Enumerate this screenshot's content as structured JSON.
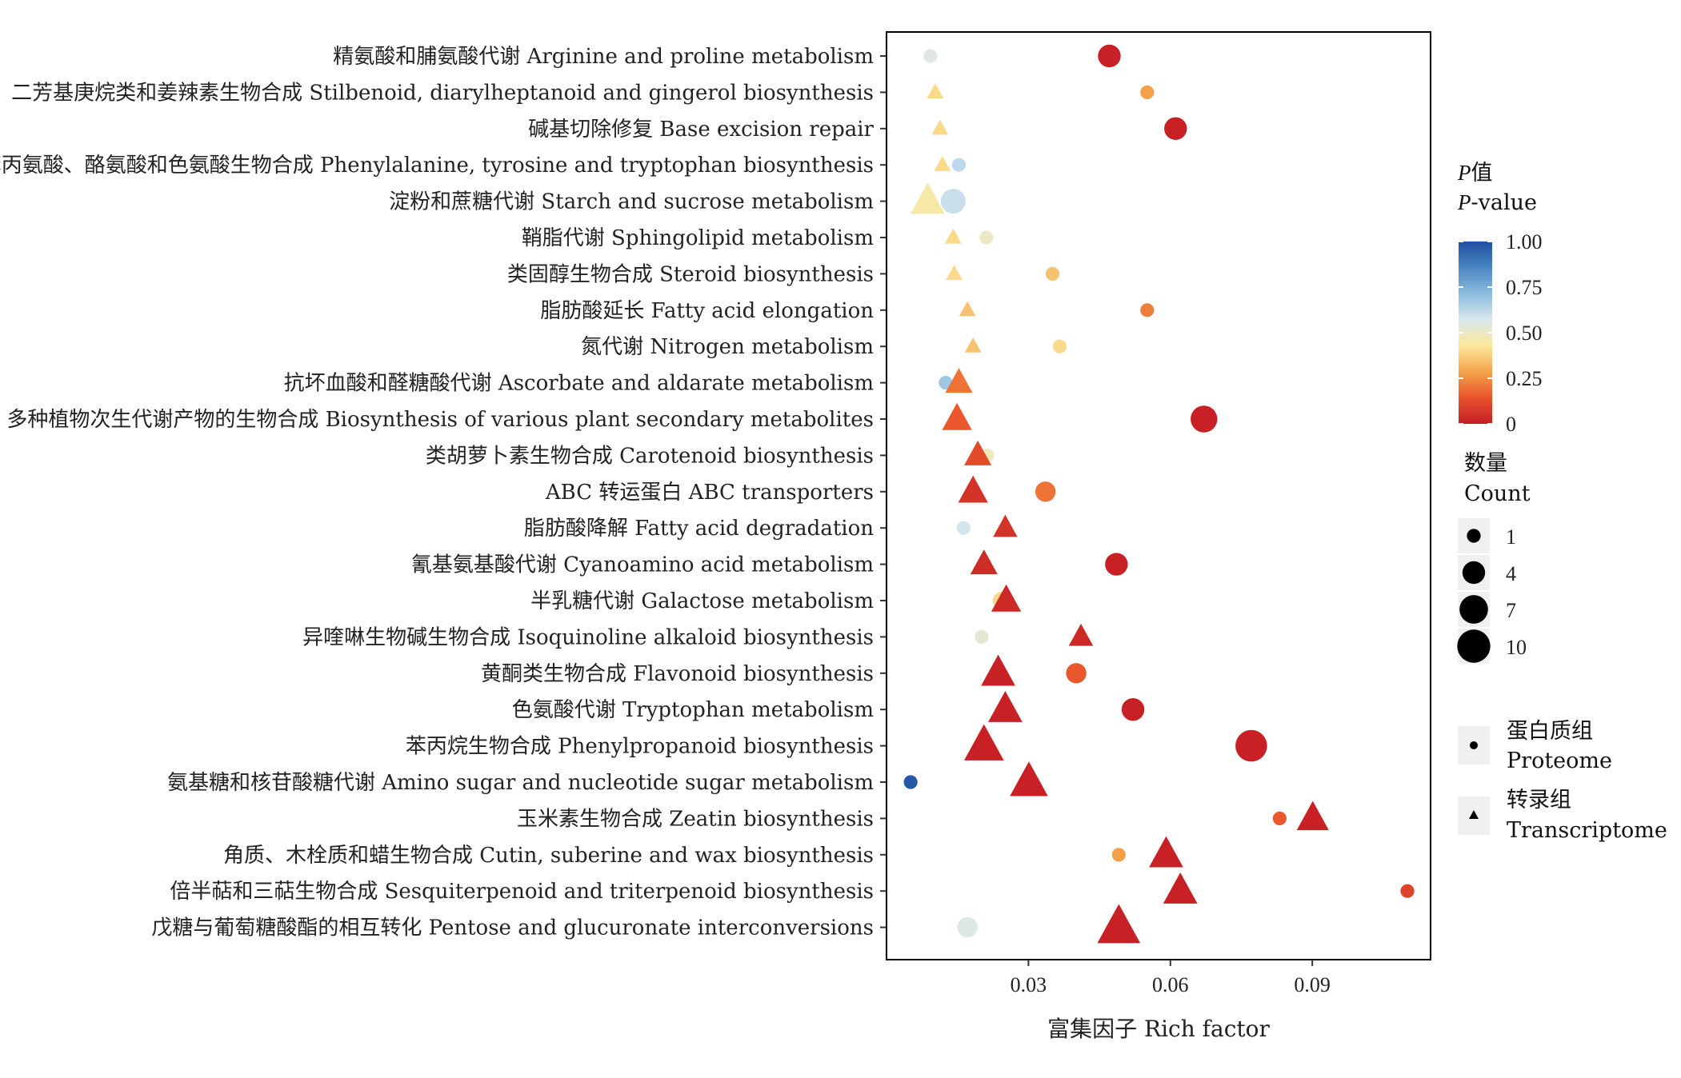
{
  "chart_data": {
    "type": "scatter",
    "xlabel": "富集因子 Rich factor",
    "xlim": [
      0.0,
      0.115
    ],
    "xticks": [
      0.03,
      0.06,
      0.09
    ],
    "xtick_labels": [
      "0.03",
      "0.06",
      "0.09"
    ],
    "categories": [
      "精氨酸和脯氨酸代谢 Arginine and proline metabolism",
      "芪类、二芳基庚烷类和姜辣素生物合成 Stilbenoid, diarylheptanoid and gingerol biosynthesis",
      "碱基切除修复 Base excision repair",
      "苯丙氨酸、酪氨酸和色氨酸生物合成 Phenylalanine, tyrosine and tryptophan biosynthesis",
      "淀粉和蔗糖代谢 Starch and sucrose metabolism",
      "鞘脂代谢 Sphingolipid metabolism",
      "类固醇生物合成 Steroid biosynthesis",
      "脂肪酸延长 Fatty acid elongation",
      "氮代谢 Nitrogen metabolism",
      "抗坏血酸和醛糖酸代谢 Ascorbate and aldarate metabolism",
      "多种植物次生代谢产物的生物合成 Biosynthesis of various plant secondary metabolites",
      "类胡萝卜素生物合成 Carotenoid biosynthesis",
      "ABC 转运蛋白 ABC transporters",
      "脂肪酸降解 Fatty acid degradation",
      "氰基氨基酸代谢 Cyanoamino acid metabolism",
      "半乳糖代谢 Galactose metabolism",
      "异喹啉生物碱生物合成 Isoquinoline alkaloid biosynthesis",
      "黄酮类生物合成 Flavonoid biosynthesis",
      "色氨酸代谢 Tryptophan metabolism",
      "苯丙烷生物合成 Phenylpropanoid biosynthesis",
      "氨基糖和核苷酸糖代谢 Amino sugar and nucleotide sugar metabolism",
      "玉米素生物合成 Zeatin biosynthesis",
      "角质、木栓质和蜡生物合成 Cutin, suberine and wax biosynthesis",
      "倍半萜和三萜生物合成 Sesquiterpenoid and triterpenoid biosynthesis",
      "戊糖与葡萄糖酸酯的相互转化 Pentose and glucuronate interconversions"
    ],
    "series": [
      {
        "name": "蛋白质组 Proteome",
        "marker": "circle",
        "points": [
          {
            "category": 0,
            "x": 0.0093,
            "p": 0.55,
            "count": 1
          },
          {
            "category": 0,
            "x": 0.0471,
            "p": 0.01,
            "count": 4
          },
          {
            "category": 1,
            "x": 0.0551,
            "p": 0.28,
            "count": 1
          },
          {
            "category": 2,
            "x": 0.0611,
            "p": 0.01,
            "count": 4
          },
          {
            "category": 3,
            "x": 0.0153,
            "p": 0.62,
            "count": 1
          },
          {
            "category": 4,
            "x": 0.0141,
            "p": 0.6,
            "count": 5
          },
          {
            "category": 5,
            "x": 0.0211,
            "p": 0.5,
            "count": 1
          },
          {
            "category": 6,
            "x": 0.0351,
            "p": 0.35,
            "count": 1
          },
          {
            "category": 7,
            "x": 0.0551,
            "p": 0.22,
            "count": 1
          },
          {
            "category": 8,
            "x": 0.0366,
            "p": 0.4,
            "count": 1
          },
          {
            "category": 9,
            "x": 0.0125,
            "p": 0.68,
            "count": 1
          },
          {
            "category": 10,
            "x": 0.0671,
            "p": 0.01,
            "count": 6
          },
          {
            "category": 11,
            "x": 0.0213,
            "p": 0.48,
            "count": 1
          },
          {
            "category": 12,
            "x": 0.0336,
            "p": 0.2,
            "count": 3
          },
          {
            "category": 13,
            "x": 0.0163,
            "p": 0.58,
            "count": 1
          },
          {
            "category": 14,
            "x": 0.0486,
            "p": 0.01,
            "count": 4
          },
          {
            "category": 15,
            "x": 0.0243,
            "p": 0.4,
            "count": 2
          },
          {
            "category": 16,
            "x": 0.0201,
            "p": 0.52,
            "count": 1
          },
          {
            "category": 17,
            "x": 0.0401,
            "p": 0.15,
            "count": 3
          },
          {
            "category": 18,
            "x": 0.0521,
            "p": 0.01,
            "count": 4
          },
          {
            "category": 19,
            "x": 0.0771,
            "p": 0.01,
            "count": 9
          },
          {
            "category": 20,
            "x": 0.0051,
            "p": 0.98,
            "count": 1
          },
          {
            "category": 21,
            "x": 0.0831,
            "p": 0.15,
            "count": 1
          },
          {
            "category": 22,
            "x": 0.0491,
            "p": 0.28,
            "count": 1
          },
          {
            "category": 23,
            "x": 0.1101,
            "p": 0.1,
            "count": 1
          },
          {
            "category": 24,
            "x": 0.0171,
            "p": 0.55,
            "count": 3
          }
        ]
      },
      {
        "name": "转录组 Transcriptome",
        "marker": "triangle",
        "points": [
          {
            "category": 1,
            "x": 0.0103,
            "p": 0.4,
            "count": 1
          },
          {
            "category": 2,
            "x": 0.0113,
            "p": 0.4,
            "count": 1
          },
          {
            "category": 3,
            "x": 0.0118,
            "p": 0.4,
            "count": 1
          },
          {
            "category": 4,
            "x": 0.0087,
            "p": 0.45,
            "count": 7
          },
          {
            "category": 5,
            "x": 0.0141,
            "p": 0.4,
            "count": 1
          },
          {
            "category": 6,
            "x": 0.0143,
            "p": 0.4,
            "count": 1
          },
          {
            "category": 7,
            "x": 0.0171,
            "p": 0.35,
            "count": 1
          },
          {
            "category": 8,
            "x": 0.0183,
            "p": 0.35,
            "count": 1
          },
          {
            "category": 9,
            "x": 0.0153,
            "p": 0.2,
            "count": 4
          },
          {
            "category": 10,
            "x": 0.0149,
            "p": 0.15,
            "count": 5
          },
          {
            "category": 11,
            "x": 0.0193,
            "p": 0.12,
            "count": 4
          },
          {
            "category": 12,
            "x": 0.0183,
            "p": 0.06,
            "count": 5
          },
          {
            "category": 13,
            "x": 0.0251,
            "p": 0.06,
            "count": 3
          },
          {
            "category": 14,
            "x": 0.0206,
            "p": 0.04,
            "count": 4
          },
          {
            "category": 15,
            "x": 0.0253,
            "p": 0.03,
            "count": 5
          },
          {
            "category": 16,
            "x": 0.0411,
            "p": 0.03,
            "count": 3
          },
          {
            "category": 17,
            "x": 0.0236,
            "p": 0.01,
            "count": 7
          },
          {
            "category": 18,
            "x": 0.0251,
            "p": 0.01,
            "count": 7
          },
          {
            "category": 19,
            "x": 0.0206,
            "p": 0.01,
            "count": 10
          },
          {
            "category": 20,
            "x": 0.0301,
            "p": 0.01,
            "count": 9
          },
          {
            "category": 21,
            "x": 0.0901,
            "p": 0.01,
            "count": 6
          },
          {
            "category": 22,
            "x": 0.0591,
            "p": 0.01,
            "count": 7
          },
          {
            "category": 23,
            "x": 0.0621,
            "p": 0.01,
            "count": 7
          },
          {
            "category": 24,
            "x": 0.0491,
            "p": 0.01,
            "count": 12
          }
        ]
      }
    ],
    "color_scale": {
      "title_line1_italic": "P",
      "title_line1_rest": "值",
      "title_line2_italic": "P",
      "title_line2_rest": "-value",
      "stops": [
        "#c41d25",
        "#e8532a",
        "#f4a34b",
        "#fbe89a",
        "#d9e8ef",
        "#8bbcdc",
        "#4a86c3",
        "#1e4fa0"
      ],
      "ticks": [
        "1.00",
        "0.75",
        "0.50",
        "0.25",
        "0"
      ]
    },
    "size_legend": {
      "title_cn": "数量",
      "title_en": "Count",
      "values": [
        "1",
        "4",
        "7",
        "10"
      ]
    },
    "shape_legend": [
      {
        "cn": "蛋白质组",
        "en": "Proteome",
        "marker": "circle"
      },
      {
        "cn": "转录组",
        "en": "Transcriptome",
        "marker": "triangle"
      }
    ],
    "grid": false,
    "legend_position": "right"
  }
}
